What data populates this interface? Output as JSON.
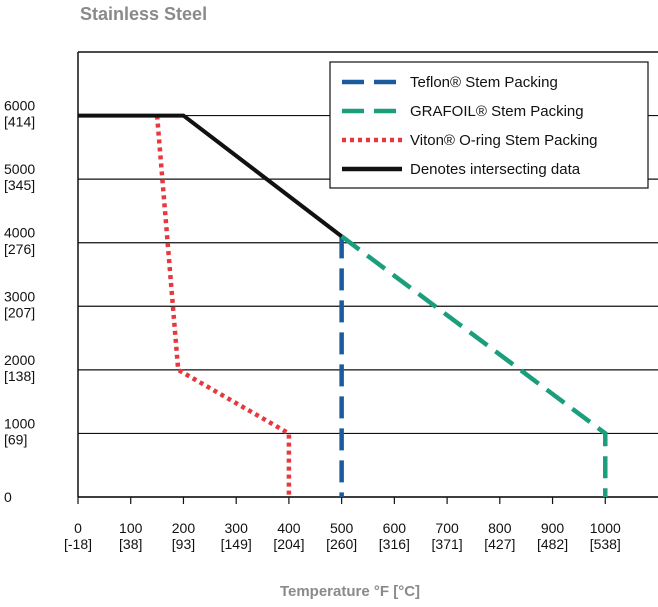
{
  "chart_data": {
    "type": "line",
    "title": "Stainless Steel",
    "xlabel": "Temperature °F [°C]",
    "xlim": [
      0,
      1100
    ],
    "ylim": [
      0,
      7000
    ],
    "xticks": [
      {
        "value": 0,
        "label": "0\n[-18]"
      },
      {
        "value": 100,
        "label": "100\n[38]"
      },
      {
        "value": 200,
        "label": "200\n[93]"
      },
      {
        "value": 300,
        "label": "300\n[149]"
      },
      {
        "value": 400,
        "label": "400\n[204]"
      },
      {
        "value": 500,
        "label": "500\n[260]"
      },
      {
        "value": 600,
        "label": "600\n[316]"
      },
      {
        "value": 700,
        "label": "700\n[371]"
      },
      {
        "value": 800,
        "label": "800\n[427]"
      },
      {
        "value": 900,
        "label": "900\n[482]"
      },
      {
        "value": 1000,
        "label": "1000\n[538]"
      }
    ],
    "yticks": [
      0,
      {
        "value": 1000,
        "label": "1000\n[69]"
      },
      {
        "value": 2000,
        "label": "2000\n[138]"
      },
      {
        "value": 3000,
        "label": "3000\n[207]"
      },
      {
        "value": 4000,
        "label": "4000\n[276]"
      },
      {
        "value": 5000,
        "label": "5000\n[345]"
      },
      {
        "value": 6000,
        "label": "6000\n[414]"
      }
    ],
    "grid": true,
    "legend": "upper right",
    "series": [
      {
        "name": "Teflon® Stem Packing",
        "color": "#1b5a9c",
        "dash": "dashed",
        "x": [
          500,
          500
        ],
        "values": [
          4100,
          0
        ]
      },
      {
        "name": "GRAFOIL® Stem Packing",
        "color": "#1a9e7c",
        "dash": "dashed",
        "x": [
          500,
          1000,
          1000
        ],
        "values": [
          4100,
          1000,
          0
        ]
      },
      {
        "name": "Viton® O-ring Stem Packing",
        "color": "#e8383d",
        "dash": "dotted",
        "x": [
          150,
          190,
          400,
          400
        ],
        "values": [
          6000,
          2000,
          1000,
          0
        ]
      },
      {
        "name": "Denotes intersecting data",
        "color": "#111111",
        "dash": "solid",
        "x": [
          0,
          200,
          500
        ],
        "values": [
          6000,
          6000,
          4100
        ]
      }
    ]
  }
}
